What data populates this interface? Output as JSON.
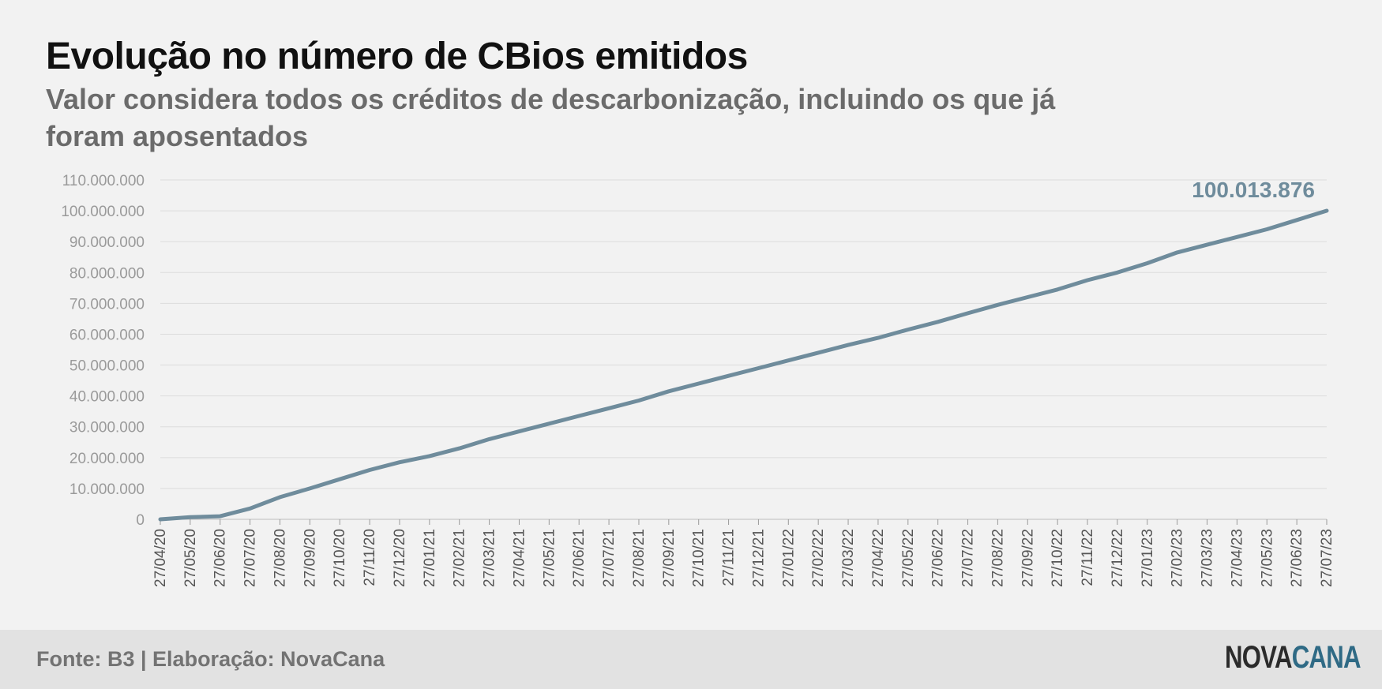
{
  "title": "Evolução no número de CBios emitidos",
  "subtitle": "Valor considera todos os créditos de descarbonização, incluindo os que já foram aposentados",
  "footer": {
    "source": "Fonte: B3 | Elaboração: NovaCana",
    "logo_part1": "NOVA",
    "logo_part2": "CANA"
  },
  "colors": {
    "line": "#6f8c9c",
    "end_label": "#6f8c9c",
    "grid": "#dcdcdc",
    "logo_accent": "#2f6a85"
  },
  "chart_data": {
    "type": "line",
    "title": "Evolução no número de CBios emitidos",
    "xlabel": "",
    "ylabel": "",
    "ylim": [
      0,
      110000000
    ],
    "grid": true,
    "legend": "none",
    "yticks": [
      {
        "value": 0,
        "label": "0"
      },
      {
        "value": 10000000,
        "label": "10.000.000"
      },
      {
        "value": 20000000,
        "label": "20.000.000"
      },
      {
        "value": 30000000,
        "label": "30.000.000"
      },
      {
        "value": 40000000,
        "label": "40.000.000"
      },
      {
        "value": 50000000,
        "label": "50.000.000"
      },
      {
        "value": 60000000,
        "label": "60.000.000"
      },
      {
        "value": 70000000,
        "label": "70.000.000"
      },
      {
        "value": 80000000,
        "label": "80.000.000"
      },
      {
        "value": 90000000,
        "label": "90.000.000"
      },
      {
        "value": 100000000,
        "label": "100.000.000"
      },
      {
        "value": 110000000,
        "label": "110.000.000"
      }
    ],
    "categories": [
      "27/04/20",
      "27/05/20",
      "27/06/20",
      "27/07/20",
      "27/08/20",
      "27/09/20",
      "27/10/20",
      "27/11/20",
      "27/12/20",
      "27/01/21",
      "27/02/21",
      "27/03/21",
      "27/04/21",
      "27/05/21",
      "27/06/21",
      "27/07/21",
      "27/08/21",
      "27/09/21",
      "27/10/21",
      "27/11/21",
      "27/12/21",
      "27/01/22",
      "27/02/22",
      "27/03/22",
      "27/04/22",
      "27/05/22",
      "27/06/22",
      "27/07/22",
      "27/08/22",
      "27/09/22",
      "27/10/22",
      "27/11/22",
      "27/12/22",
      "27/01/23",
      "27/02/23",
      "27/03/23",
      "27/04/23",
      "27/05/23",
      "27/06/23",
      "27/07/23"
    ],
    "series": [
      {
        "values": [
          0,
          700000,
          1000000,
          3500000,
          7200000,
          10000000,
          13000000,
          16000000,
          18500000,
          20500000,
          23000000,
          26000000,
          28500000,
          31000000,
          33500000,
          36000000,
          38500000,
          41500000,
          44000000,
          46500000,
          49000000,
          51500000,
          54000000,
          56500000,
          58800000,
          61500000,
          64000000,
          66800000,
          69500000,
          72000000,
          74500000,
          77500000,
          80000000,
          83000000,
          86500000,
          89000000,
          91500000,
          94000000,
          97000000,
          100013876
        ]
      }
    ],
    "end_label": "100.013.876"
  }
}
